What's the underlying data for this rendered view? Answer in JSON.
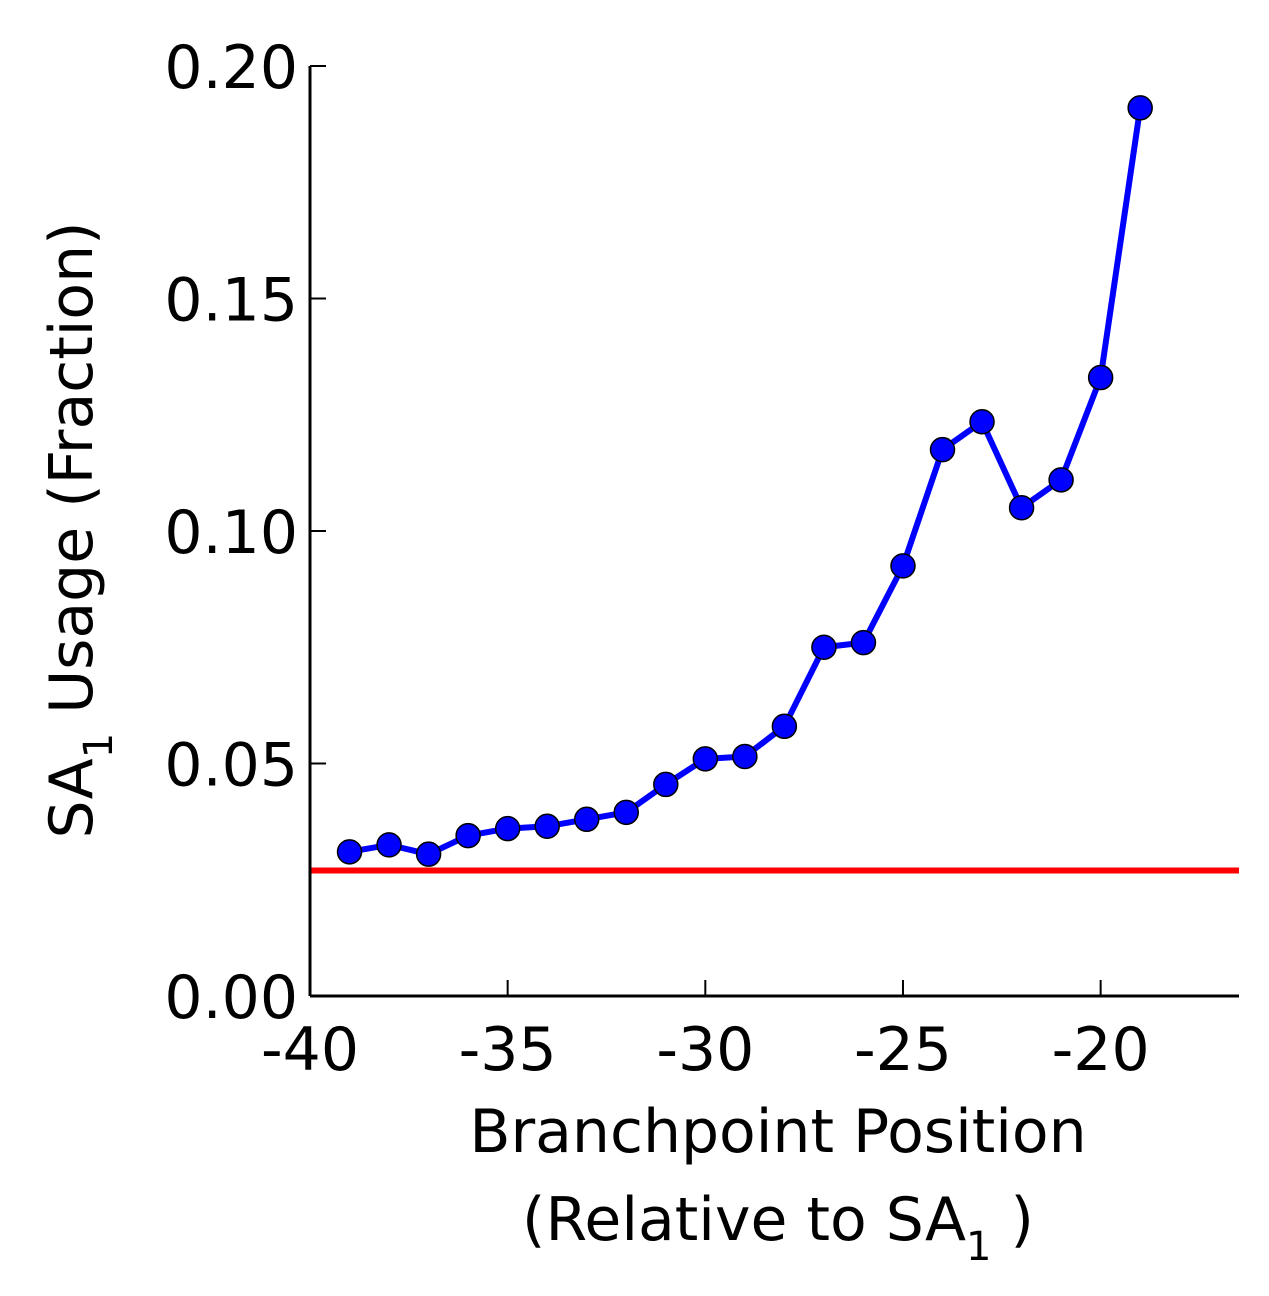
{
  "chart_data": {
    "type": "line",
    "xlabel_line1": "Branchpoint Position",
    "xlabel_line2_pre": "(Relative to SA",
    "xlabel_line2_sub": "1",
    "xlabel_line2_post": " )",
    "ylabel_pre": "SA",
    "ylabel_sub": "1",
    "ylabel_post": " Usage (Fraction)",
    "xlim": [
      -40,
      -16.5
    ],
    "ylim": [
      0,
      0.2
    ],
    "x_ticks": [
      -40,
      -35,
      -30,
      -25,
      -20
    ],
    "x_tick_labels": [
      "-40",
      "-35",
      "-30",
      "-25",
      "-20"
    ],
    "y_ticks": [
      0,
      0.05,
      0.1,
      0.15,
      0.2
    ],
    "y_tick_labels": [
      "0.00",
      "0.05",
      "0.10",
      "0.15",
      "0.20"
    ],
    "grid": false,
    "series": [
      {
        "color": "#0000ff",
        "marker": "circle",
        "x": [
          -39,
          -38,
          -37,
          -36,
          -35,
          -34,
          -33,
          -32,
          -31,
          -30,
          -29,
          -28,
          -27,
          -26,
          -25,
          -24,
          -23,
          -22,
          -21,
          -20,
          -19
        ],
        "y": [
          0.031,
          0.0325,
          0.0305,
          0.0345,
          0.036,
          0.0365,
          0.038,
          0.0395,
          0.0455,
          0.051,
          0.0515,
          0.058,
          0.075,
          0.076,
          0.0925,
          0.1175,
          0.1235,
          0.105,
          0.111,
          0.133,
          0.191
        ]
      }
    ],
    "reference_line": {
      "y": 0.027,
      "color": "#ff0000"
    }
  }
}
